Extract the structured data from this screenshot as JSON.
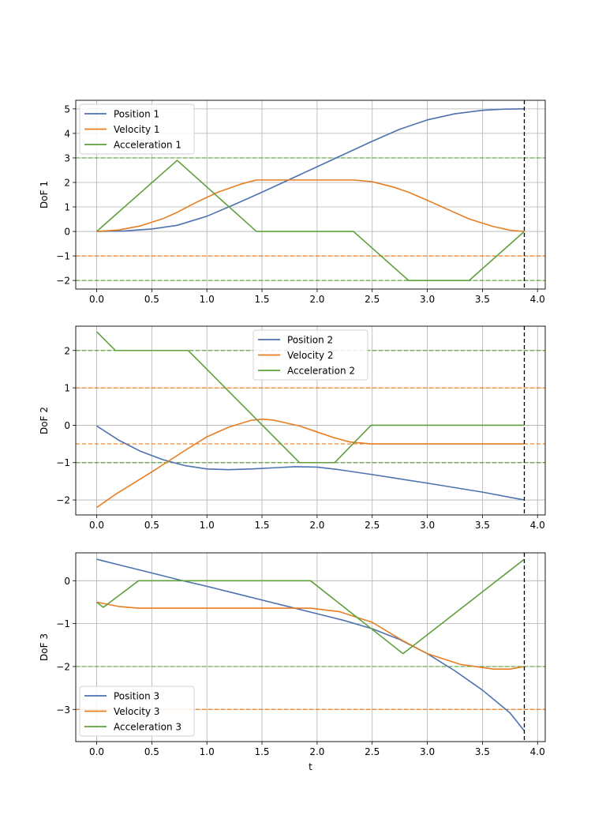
{
  "colors": {
    "position": "#4c72b0",
    "velocity": "#e67e22",
    "acceleration": "#5fa03c",
    "grid": "#b0b0b0",
    "duration_line": "#000000"
  },
  "chart_data": [
    {
      "type": "line",
      "ylabel": "DoF 1",
      "xlabel": "",
      "xlim": [
        -0.19,
        4.07
      ],
      "ylim": [
        -2.35,
        5.35
      ],
      "xticks": [
        0.0,
        0.5,
        1.0,
        1.5,
        2.0,
        2.5,
        3.0,
        3.5,
        4.0
      ],
      "xtick_labels": [
        "0.0",
        "0.5",
        "1.0",
        "1.5",
        "2.0",
        "2.5",
        "3.0",
        "3.5",
        "4.0"
      ],
      "yticks": [
        -2,
        -1,
        0,
        1,
        2,
        3,
        4,
        5
      ],
      "ytick_labels": [
        "−2",
        "−1",
        "0",
        "1",
        "2",
        "3",
        "4",
        "5"
      ],
      "grid": true,
      "legend_position": "upper-left",
      "duration": 3.88,
      "series": [
        {
          "name": "Position 1",
          "kind": "position",
          "x": [
            0,
            0.25,
            0.5,
            0.73,
            1.0,
            1.25,
            1.5,
            1.75,
            2.0,
            2.25,
            2.5,
            2.75,
            3.0,
            3.25,
            3.5,
            3.7,
            3.88
          ],
          "y": [
            0,
            0.02,
            0.1,
            0.25,
            0.62,
            1.1,
            1.6,
            2.12,
            2.64,
            3.16,
            3.68,
            4.17,
            4.55,
            4.8,
            4.94,
            4.99,
            5.0
          ]
        },
        {
          "name": "Velocity 1",
          "kind": "velocity",
          "x": [
            0,
            0.2,
            0.4,
            0.6,
            0.73,
            0.9,
            1.1,
            1.3,
            1.45,
            2.33,
            2.5,
            2.7,
            2.83,
            3.0,
            3.2,
            3.38,
            3.6,
            3.75,
            3.88
          ],
          "y": [
            0,
            0.06,
            0.23,
            0.52,
            0.78,
            1.18,
            1.6,
            1.92,
            2.1,
            2.1,
            2.03,
            1.8,
            1.6,
            1.27,
            0.87,
            0.51,
            0.2,
            0.05,
            0
          ]
        },
        {
          "name": "Acceleration 1",
          "kind": "acceleration",
          "x": [
            0,
            0.73,
            1.45,
            2.33,
            2.83,
            3.38,
            3.88
          ],
          "y": [
            0,
            2.9,
            0,
            0,
            -2,
            -2,
            0
          ]
        }
      ],
      "hlines": [
        {
          "kind": "acceleration",
          "value": 3
        },
        {
          "kind": "acceleration",
          "value": -2
        },
        {
          "kind": "velocity",
          "value": -1
        }
      ]
    },
    {
      "type": "line",
      "ylabel": "DoF 2",
      "xlabel": "",
      "xlim": [
        -0.19,
        4.07
      ],
      "ylim": [
        -2.4,
        2.65
      ],
      "xticks": [
        0.0,
        0.5,
        1.0,
        1.5,
        2.0,
        2.5,
        3.0,
        3.5,
        4.0
      ],
      "xtick_labels": [
        "0.0",
        "0.5",
        "1.0",
        "1.5",
        "2.0",
        "2.5",
        "3.0",
        "3.5",
        "4.0"
      ],
      "yticks": [
        -2,
        -1,
        0,
        1,
        2
      ],
      "ytick_labels": [
        "−2",
        "−1",
        "0",
        "1",
        "2"
      ],
      "grid": true,
      "legend_position": "upper-center",
      "duration": 3.88,
      "series": [
        {
          "name": "Position 2",
          "kind": "position",
          "x": [
            0,
            0.2,
            0.4,
            0.6,
            0.8,
            1.0,
            1.2,
            1.4,
            1.6,
            1.8,
            2.0,
            2.2,
            2.5,
            3.0,
            3.5,
            3.88
          ],
          "y": [
            -0.02,
            -0.4,
            -0.7,
            -0.92,
            -1.08,
            -1.17,
            -1.19,
            -1.17,
            -1.14,
            -1.11,
            -1.12,
            -1.19,
            -1.32,
            -1.55,
            -1.79,
            -2.0
          ]
        },
        {
          "name": "Velocity 2",
          "kind": "velocity",
          "x": [
            0,
            0.17,
            0.5,
            0.83,
            1.0,
            1.2,
            1.4,
            1.5,
            1.6,
            1.84,
            2.0,
            2.16,
            2.3,
            2.49,
            3.0,
            3.88
          ],
          "y": [
            -2.2,
            -1.85,
            -1.25,
            -0.62,
            -0.31,
            -0.05,
            0.13,
            0.16,
            0.14,
            -0.02,
            -0.18,
            -0.34,
            -0.45,
            -0.5,
            -0.5,
            -0.5
          ]
        },
        {
          "name": "Acceleration 2",
          "kind": "acceleration",
          "x": [
            0,
            0.17,
            0.83,
            1.84,
            2.16,
            2.49,
            3.88
          ],
          "y": [
            2.5,
            2.0,
            2.0,
            -1.0,
            -1.0,
            0,
            0
          ]
        }
      ],
      "hlines": [
        {
          "kind": "acceleration",
          "value": 2
        },
        {
          "kind": "acceleration",
          "value": -1
        },
        {
          "kind": "velocity",
          "value": 1
        },
        {
          "kind": "velocity",
          "value": -0.5
        }
      ]
    },
    {
      "type": "line",
      "ylabel": "DoF 3",
      "xlabel": "t",
      "xlim": [
        -0.19,
        4.07
      ],
      "ylim": [
        -3.75,
        0.65
      ],
      "xticks": [
        0.0,
        0.5,
        1.0,
        1.5,
        2.0,
        2.5,
        3.0,
        3.5,
        4.0
      ],
      "xtick_labels": [
        "0.0",
        "0.5",
        "1.0",
        "1.5",
        "2.0",
        "2.5",
        "3.0",
        "3.5",
        "4.0"
      ],
      "yticks": [
        -3,
        -2,
        -1,
        0
      ],
      "ytick_labels": [
        "−3",
        "−2",
        "−1",
        "0"
      ],
      "grid": true,
      "legend_position": "lower-left",
      "duration": 3.88,
      "series": [
        {
          "name": "Position 3",
          "kind": "position",
          "x": [
            0,
            0.25,
            0.5,
            0.75,
            1.0,
            1.25,
            1.5,
            1.75,
            2.0,
            2.25,
            2.5,
            2.75,
            3.0,
            3.25,
            3.5,
            3.75,
            3.88
          ],
          "y": [
            0.5,
            0.34,
            0.18,
            0.02,
            -0.13,
            -0.29,
            -0.45,
            -0.61,
            -0.77,
            -0.93,
            -1.12,
            -1.37,
            -1.7,
            -2.1,
            -2.55,
            -3.08,
            -3.5
          ]
        },
        {
          "name": "Velocity 3",
          "kind": "velocity",
          "x": [
            0,
            0.2,
            0.38,
            1.0,
            1.5,
            1.94,
            2.2,
            2.5,
            2.78,
            3.0,
            3.3,
            3.6,
            3.75,
            3.88
          ],
          "y": [
            -0.5,
            -0.6,
            -0.64,
            -0.64,
            -0.64,
            -0.64,
            -0.72,
            -0.97,
            -1.4,
            -1.7,
            -1.95,
            -2.06,
            -2.06,
            -2.0
          ]
        },
        {
          "name": "Acceleration 3",
          "kind": "acceleration",
          "x": [
            0,
            0.06,
            0.38,
            1.94,
            2.78,
            3.88
          ],
          "y": [
            -0.5,
            -0.62,
            0,
            0,
            -1.7,
            0.5
          ]
        }
      ],
      "hlines": [
        {
          "kind": "acceleration",
          "value": -2
        },
        {
          "kind": "velocity",
          "value": -3
        }
      ]
    }
  ]
}
